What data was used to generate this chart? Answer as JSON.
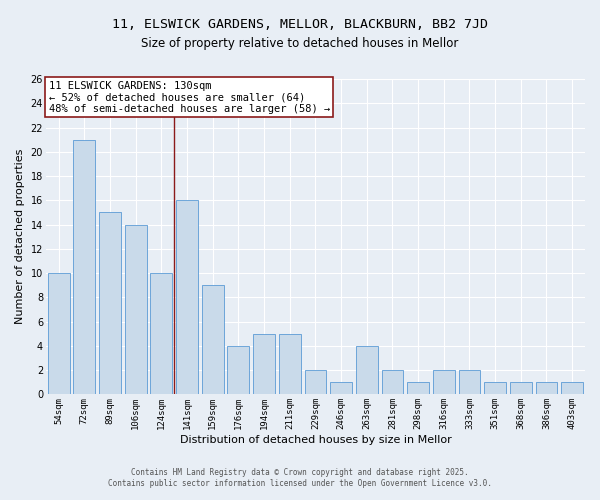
{
  "title_line1": "11, ELSWICK GARDENS, MELLOR, BLACKBURN, BB2 7JD",
  "title_line2": "Size of property relative to detached houses in Mellor",
  "xlabel": "Distribution of detached houses by size in Mellor",
  "ylabel": "Number of detached properties",
  "categories": [
    "54sqm",
    "72sqm",
    "89sqm",
    "106sqm",
    "124sqm",
    "141sqm",
    "159sqm",
    "176sqm",
    "194sqm",
    "211sqm",
    "229sqm",
    "246sqm",
    "263sqm",
    "281sqm",
    "298sqm",
    "316sqm",
    "333sqm",
    "351sqm",
    "368sqm",
    "386sqm",
    "403sqm"
  ],
  "values": [
    10,
    21,
    15,
    14,
    10,
    16,
    9,
    4,
    5,
    5,
    2,
    1,
    4,
    2,
    1,
    2,
    2,
    1,
    1,
    1,
    1
  ],
  "bar_color": "#c9daea",
  "bar_edge_color": "#5b9bd5",
  "bar_width": 0.85,
  "annotation_line1": "11 ELSWICK GARDENS: 130sqm",
  "annotation_line2": "← 52% of detached houses are smaller (64)",
  "annotation_line3": "48% of semi-detached houses are larger (58) →",
  "vline_color": "#8b1a1a",
  "vline_x": 4.5,
  "annotation_box_facecolor": "#ffffff",
  "annotation_box_edgecolor": "#8b1a1a",
  "ylim": [
    0,
    26
  ],
  "yticks": [
    0,
    2,
    4,
    6,
    8,
    10,
    12,
    14,
    16,
    18,
    20,
    22,
    24,
    26
  ],
  "bg_color": "#e8eef5",
  "plot_bg_color": "#e8eef5",
  "grid_color": "#ffffff",
  "footer_line1": "Contains HM Land Registry data © Crown copyright and database right 2025.",
  "footer_line2": "Contains public sector information licensed under the Open Government Licence v3.0.",
  "title_fontsize": 9.5,
  "subtitle_fontsize": 8.5,
  "tick_fontsize": 6.5,
  "label_fontsize": 8,
  "annotation_fontsize": 7.5,
  "footer_fontsize": 5.5
}
